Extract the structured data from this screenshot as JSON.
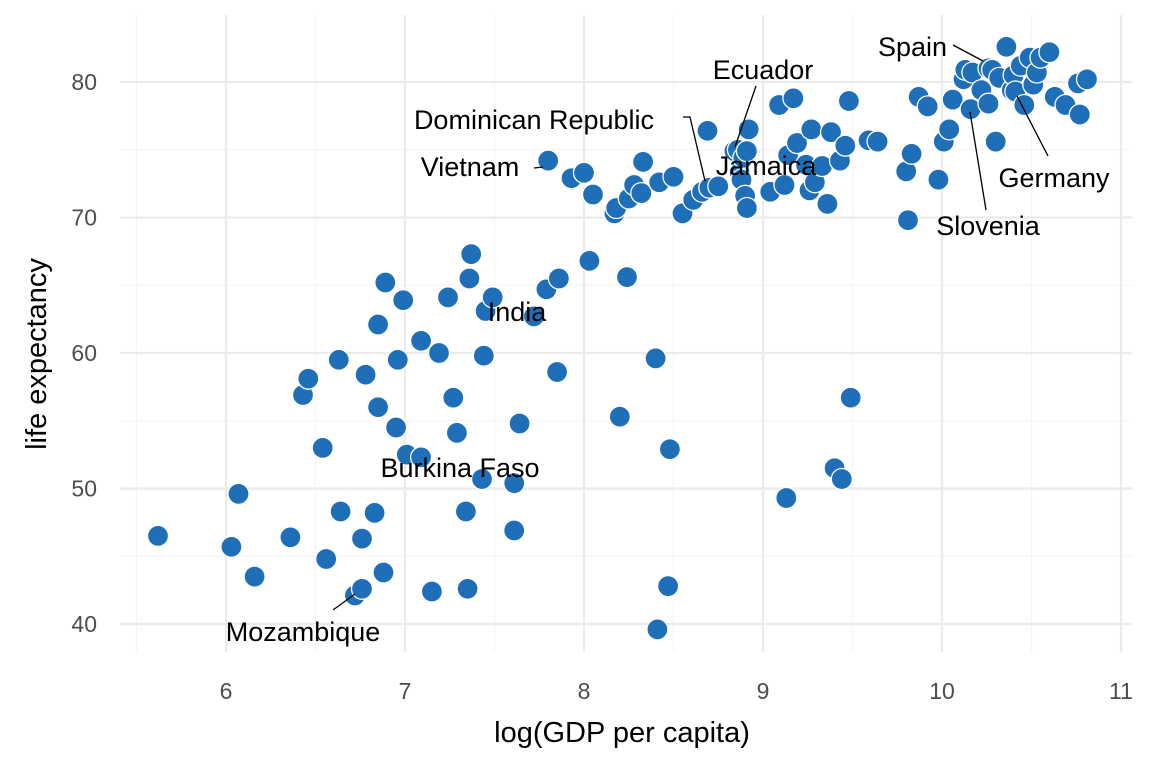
{
  "chart_data": {
    "type": "scatter",
    "xlabel": "log(GDP per capita)",
    "ylabel": "life expectancy",
    "xlim": [
      5.4,
      11.0
    ],
    "ylim": [
      37.8,
      84.4
    ],
    "xticks": [
      6,
      7,
      8,
      9,
      10,
      11
    ],
    "yticks": [
      40,
      50,
      60,
      70,
      80
    ],
    "grid": true,
    "color": "#1f6eb8",
    "points": [
      [
        5.62,
        46.5
      ],
      [
        6.03,
        45.7
      ],
      [
        6.07,
        49.6
      ],
      [
        6.16,
        43.5
      ],
      [
        6.36,
        46.4
      ],
      [
        6.43,
        56.9
      ],
      [
        6.46,
        58.1
      ],
      [
        6.54,
        53.0
      ],
      [
        6.56,
        44.8
      ],
      [
        6.63,
        59.5
      ],
      [
        6.64,
        48.3
      ],
      [
        6.72,
        42.1
      ],
      [
        6.76,
        42.6
      ],
      [
        6.76,
        46.3
      ],
      [
        6.78,
        58.4
      ],
      [
        6.83,
        48.2
      ],
      [
        6.85,
        56.0
      ],
      [
        6.85,
        62.1
      ],
      [
        6.88,
        43.8
      ],
      [
        6.89,
        65.2
      ],
      [
        6.95,
        54.5
      ],
      [
        6.96,
        59.5
      ],
      [
        6.99,
        63.9
      ],
      [
        7.01,
        52.5
      ],
      [
        7.09,
        52.3
      ],
      [
        7.09,
        60.9
      ],
      [
        7.15,
        42.4
      ],
      [
        7.19,
        60.0
      ],
      [
        7.24,
        64.1
      ],
      [
        7.27,
        56.7
      ],
      [
        7.29,
        54.1
      ],
      [
        7.34,
        48.3
      ],
      [
        7.35,
        42.6
      ],
      [
        7.36,
        65.5
      ],
      [
        7.37,
        67.3
      ],
      [
        7.43,
        50.7
      ],
      [
        7.44,
        59.8
      ],
      [
        7.45,
        63.1
      ],
      [
        7.49,
        64.1
      ],
      [
        7.61,
        50.4
      ],
      [
        7.61,
        46.9
      ],
      [
        7.64,
        54.8
      ],
      [
        7.72,
        62.7
      ],
      [
        7.79,
        64.7
      ],
      [
        7.8,
        74.2
      ],
      [
        7.85,
        58.6
      ],
      [
        7.86,
        65.5
      ],
      [
        7.93,
        72.9
      ],
      [
        8.0,
        73.3
      ],
      [
        8.03,
        66.8
      ],
      [
        8.05,
        71.7
      ],
      [
        8.17,
        70.3
      ],
      [
        8.18,
        70.7
      ],
      [
        8.2,
        55.3
      ],
      [
        8.24,
        65.6
      ],
      [
        8.25,
        71.4
      ],
      [
        8.28,
        72.4
      ],
      [
        8.32,
        71.8
      ],
      [
        8.33,
        74.1
      ],
      [
        8.4,
        59.6
      ],
      [
        8.41,
        39.6
      ],
      [
        8.42,
        72.6
      ],
      [
        8.47,
        42.8
      ],
      [
        8.48,
        52.9
      ],
      [
        8.5,
        73.0
      ],
      [
        8.55,
        70.3
      ],
      [
        8.61,
        71.3
      ],
      [
        8.66,
        71.9
      ],
      [
        8.69,
        76.4
      ],
      [
        8.7,
        72.2
      ],
      [
        8.75,
        72.3
      ],
      [
        8.84,
        74.9
      ],
      [
        8.86,
        75.0
      ],
      [
        8.87,
        73.3
      ],
      [
        8.88,
        72.8
      ],
      [
        8.89,
        74.4
      ],
      [
        8.9,
        71.6
      ],
      [
        8.91,
        70.7
      ],
      [
        8.91,
        74.9
      ],
      [
        8.92,
        76.5
      ],
      [
        9.04,
        71.9
      ],
      [
        9.09,
        78.3
      ],
      [
        9.12,
        72.4
      ],
      [
        9.13,
        49.3
      ],
      [
        9.14,
        74.6
      ],
      [
        9.17,
        78.8
      ],
      [
        9.19,
        75.5
      ],
      [
        9.24,
        73.9
      ],
      [
        9.26,
        72.0
      ],
      [
        9.27,
        76.5
      ],
      [
        9.29,
        72.6
      ],
      [
        9.33,
        73.8
      ],
      [
        9.36,
        71.0
      ],
      [
        9.38,
        76.3
      ],
      [
        9.4,
        51.5
      ],
      [
        9.43,
        74.2
      ],
      [
        9.44,
        50.7
      ],
      [
        9.46,
        75.3
      ],
      [
        9.48,
        78.6
      ],
      [
        9.49,
        56.7
      ],
      [
        9.59,
        75.7
      ],
      [
        9.64,
        75.6
      ],
      [
        9.8,
        73.4
      ],
      [
        9.81,
        69.8
      ],
      [
        9.83,
        74.7
      ],
      [
        9.87,
        78.9
      ],
      [
        9.92,
        78.2
      ],
      [
        9.98,
        72.8
      ],
      [
        10.01,
        75.6
      ],
      [
        10.04,
        76.5
      ],
      [
        10.06,
        78.7
      ],
      [
        10.12,
        80.2
      ],
      [
        10.13,
        80.9
      ],
      [
        10.16,
        78.0
      ],
      [
        10.17,
        80.7
      ],
      [
        10.22,
        79.4
      ],
      [
        10.26,
        78.4
      ],
      [
        10.26,
        81.0
      ],
      [
        10.28,
        80.9
      ],
      [
        10.3,
        75.6
      ],
      [
        10.32,
        80.3
      ],
      [
        10.36,
        82.6
      ],
      [
        10.39,
        79.4
      ],
      [
        10.4,
        80.5
      ],
      [
        10.41,
        79.3
      ],
      [
        10.44,
        81.2
      ],
      [
        10.46,
        78.3
      ],
      [
        10.49,
        81.8
      ],
      [
        10.51,
        79.8
      ],
      [
        10.53,
        80.7
      ],
      [
        10.55,
        81.8
      ],
      [
        10.6,
        82.2
      ],
      [
        10.63,
        78.9
      ],
      [
        10.69,
        78.3
      ],
      [
        10.76,
        79.9
      ],
      [
        10.77,
        77.6
      ],
      [
        10.81,
        80.2
      ]
    ],
    "annotations": [
      {
        "text": "Spain",
        "x": 10.27,
        "y": 80.9
      },
      {
        "text": "Ecuador",
        "x": 8.84,
        "y": 75.0
      },
      {
        "text": "Dominican Republic",
        "x": 8.7,
        "y": 72.2
      },
      {
        "text": "Jamaica",
        "x": 8.92,
        "y": 72.6
      },
      {
        "text": "Vietnam",
        "x": 7.8,
        "y": 74.2
      },
      {
        "text": "Germany",
        "x": 10.41,
        "y": 79.3
      },
      {
        "text": "Slovenia",
        "x": 10.16,
        "y": 78.0
      },
      {
        "text": "India",
        "x": 7.73,
        "y": 62.7
      },
      {
        "text": "Burkina Faso",
        "x": 7.15,
        "y": 52.3
      },
      {
        "text": "Mozambique",
        "x": 6.72,
        "y": 42.1
      }
    ]
  }
}
